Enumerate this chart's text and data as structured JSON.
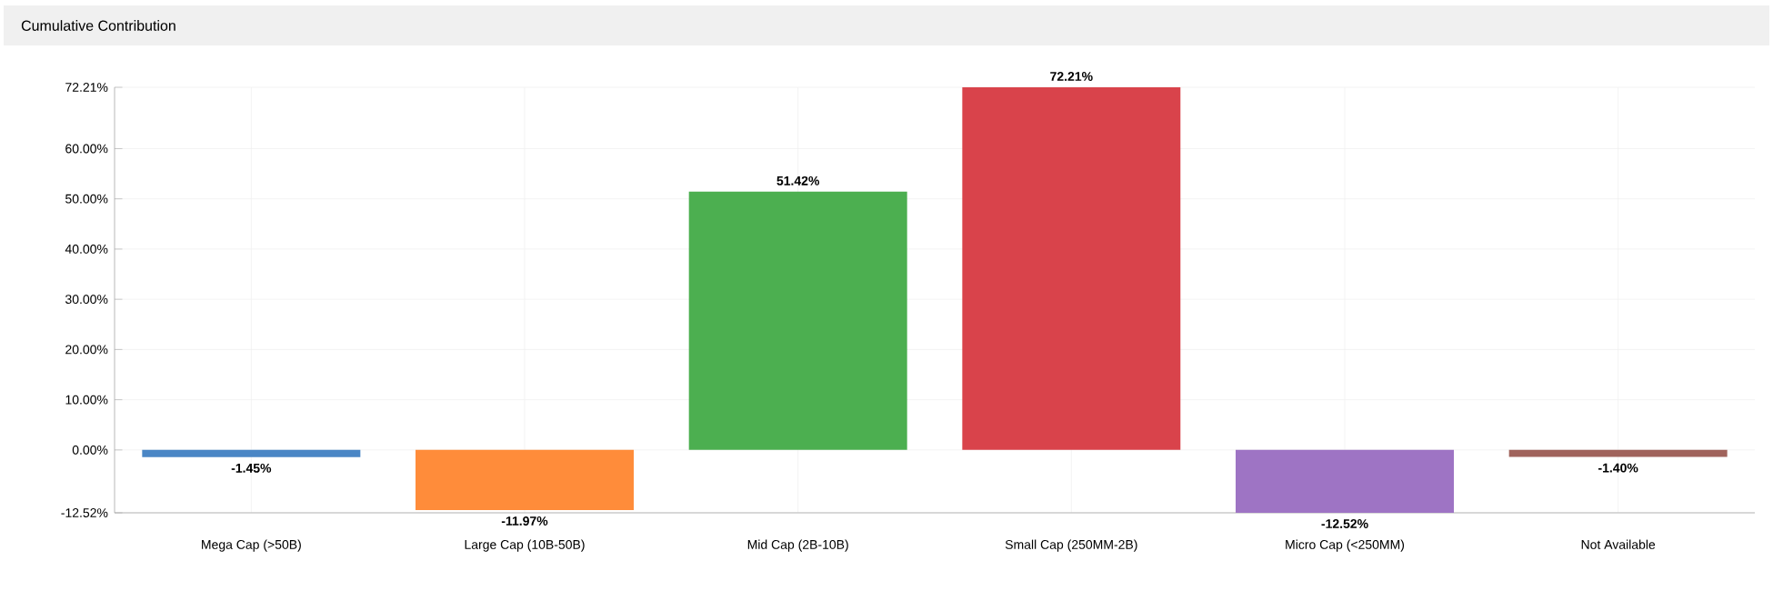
{
  "chart_data": {
    "type": "bar",
    "title": "Cumulative Contribution",
    "categories": [
      "Mega Cap (>50B)",
      "Large Cap (10B-50B)",
      "Mid Cap (2B-10B)",
      "Small Cap (250MM-2B)",
      "Micro Cap (<250MM)",
      "Not Available"
    ],
    "values": [
      -1.45,
      -11.97,
      51.42,
      72.21,
      -12.52,
      -1.4
    ],
    "value_labels": [
      "-1.45%",
      "-11.97%",
      "51.42%",
      "72.21%",
      "-12.52%",
      "-1.40%"
    ],
    "colors": [
      "#4a86c5",
      "#ff8c3a",
      "#4caf50",
      "#d9434b",
      "#9e74c4",
      "#a0635c"
    ],
    "ylim": [
      -12.52,
      72.21
    ],
    "yticks": [
      {
        "value": -12.52,
        "label": "-12.52%"
      },
      {
        "value": 0,
        "label": "0.00%"
      },
      {
        "value": 10,
        "label": "10.00%"
      },
      {
        "value": 20,
        "label": "20.00%"
      },
      {
        "value": 30,
        "label": "30.00%"
      },
      {
        "value": 40,
        "label": "40.00%"
      },
      {
        "value": 50,
        "label": "50.00%"
      },
      {
        "value": 60,
        "label": "60.00%"
      },
      {
        "value": 72.21,
        "label": "72.21%"
      }
    ],
    "grid": true
  }
}
